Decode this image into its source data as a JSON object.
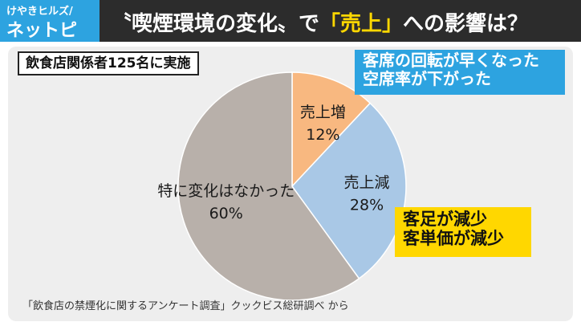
{
  "header": {
    "logo_top": "けやきヒルズ/",
    "logo_bottom": "ネットピ",
    "headline_pre": "〝喫煙環境の変化〟で",
    "headline_highlight": "「売上」",
    "headline_post": "への影響は？"
  },
  "survey_badge": "飲食店関係者125名に実施",
  "chart_data": {
    "type": "pie",
    "slices": [
      {
        "label": "売上増",
        "value": 12,
        "value_label": "12%",
        "color": "#f8b880"
      },
      {
        "label": "売上減",
        "value": 28,
        "value_label": "28%",
        "color": "#a9c8e6"
      },
      {
        "label": "特に変化はなかった",
        "value": 60,
        "value_label": "60%",
        "color": "#b8b0aa"
      }
    ],
    "start_angle": "12 o'clock",
    "direction": "clockwise"
  },
  "callouts": {
    "up": {
      "lines": [
        "客席の回転が早くなった",
        "空席率が下がった"
      ],
      "color": "#2da3e0"
    },
    "down": {
      "lines": [
        "客足が減少",
        "客単価が減少"
      ],
      "color": "#ffd700"
    }
  },
  "source": "「飲食店の禁煙化に関するアンケート調査」クックビス総研調べ から"
}
